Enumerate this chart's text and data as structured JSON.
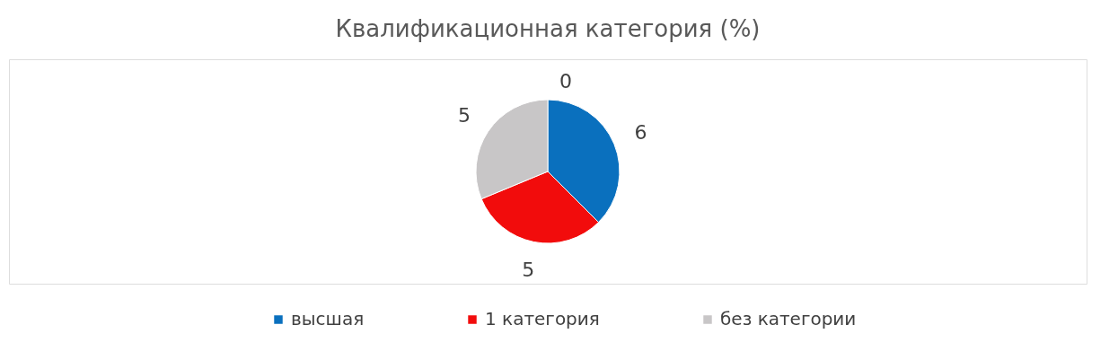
{
  "chart_data": {
    "type": "pie",
    "title": "Квалификационная категория (%)",
    "categories": [
      "высшая",
      "1 категория",
      "без категории"
    ],
    "values": [
      6,
      5,
      5
    ],
    "colors": [
      "#0a70be",
      "#f20c0c",
      "#c8c6c7"
    ],
    "data_labels": true,
    "legend": "bottom",
    "annotations": [
      "0"
    ]
  }
}
